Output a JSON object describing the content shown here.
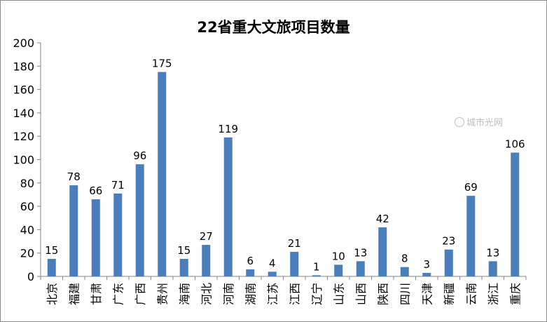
{
  "chart_data": {
    "type": "bar",
    "title": "22省重大文旅项目数量",
    "categories": [
      "北京",
      "福建",
      "甘肃",
      "广东",
      "广西",
      "贵州",
      "海南",
      "河北",
      "河南",
      "湖南",
      "江苏",
      "江西",
      "辽宁",
      "山东",
      "山西",
      "陕西",
      "四川",
      "天津",
      "新疆",
      "云南",
      "浙江",
      "重庆"
    ],
    "values": [
      15,
      78,
      66,
      71,
      96,
      175,
      15,
      27,
      119,
      6,
      4,
      21,
      1,
      10,
      13,
      42,
      8,
      3,
      23,
      69,
      13,
      106
    ],
    "xlabel": "",
    "ylabel": "",
    "ylim": [
      0,
      200
    ],
    "yticks": [
      0,
      20,
      40,
      60,
      80,
      100,
      120,
      140,
      160,
      180,
      200
    ],
    "grid": false,
    "legend": "none",
    "bar_color": "#4a7ebb"
  },
  "watermark": "城市光网"
}
